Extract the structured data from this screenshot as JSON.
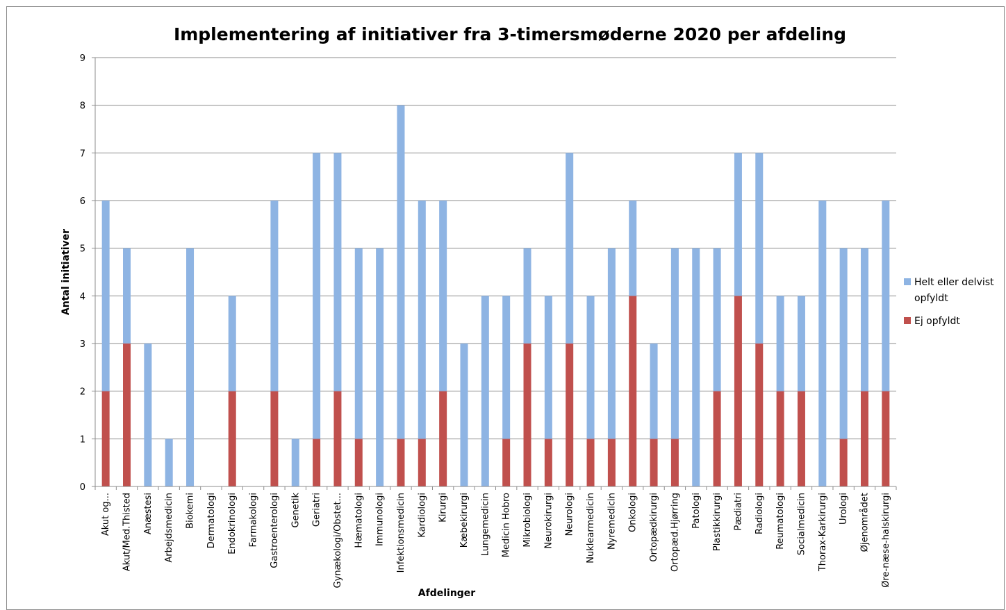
{
  "chart_data": {
    "type": "bar",
    "stacked": true,
    "title": "Implementering af initiativer fra 3-timersmøderne 2020 per afdeling",
    "xlabel": "Afdelinger",
    "ylabel": "Antal initiativer",
    "ylim": [
      0,
      9
    ],
    "yticks": [
      "0",
      "1",
      "2",
      "3",
      "4",
      "5",
      "6",
      "7",
      "8",
      "9"
    ],
    "grid": true,
    "legend_position": "right",
    "categories": [
      "Akut og...",
      "Akut/Med.Thisted",
      "Anæstesi",
      "Arbejdsmedicin",
      "Biokemi",
      "Dermatologi",
      "Endokrinologi",
      "Farmakologi",
      "Gastroenterologi",
      "Genetik",
      "Geriatri",
      "Gynækologi/Obstet...",
      "Hæmatologi",
      "Immunologi",
      "Infektionsmedicin",
      "Kardiologi",
      "Kirurgi",
      "Kæbekirurgi",
      "Lungemedicin",
      "Medicin Hobro",
      "Mikrobiologi",
      "Neurokirurgi",
      "Neurologi",
      "Nuklearmedicin",
      "Nyremedicin",
      "Onkologi",
      "Ortopædkirurgi",
      "Ortopæd.Hjørring",
      "Patologi",
      "Plastikkirurgi",
      "Pædiatri",
      "Radiologi",
      "Reumatologi",
      "Socialmedicin",
      "Thorax-Karkirurgi",
      "Urologi",
      "Øjenområdet",
      "Øre-næse-halskirurgi"
    ],
    "series": [
      {
        "name": "Ej opfyldt",
        "color": "#c0504d",
        "values": [
          2,
          3,
          0,
          0,
          0,
          0,
          2,
          0,
          2,
          0,
          1,
          2,
          1,
          0,
          1,
          1,
          2,
          0,
          0,
          1,
          3,
          1,
          3,
          1,
          1,
          4,
          1,
          1,
          0,
          2,
          4,
          3,
          2,
          2,
          0,
          1,
          2,
          2
        ]
      },
      {
        "name": "Helt eller delvist opfyldt",
        "color": "#8eb4e3",
        "values": [
          4,
          2,
          3,
          1,
          5,
          0,
          2,
          0,
          4,
          1,
          6,
          5,
          4,
          5,
          7,
          5,
          4,
          3,
          4,
          3,
          2,
          3,
          4,
          3,
          4,
          2,
          2,
          4,
          5,
          3,
          3,
          4,
          2,
          2,
          6,
          4,
          3,
          4
        ]
      }
    ],
    "legend": [
      {
        "lines": [
          "Helt eller delvist",
          "opfyldt"
        ],
        "color": "#8eb4e3"
      },
      {
        "lines": [
          "Ej opfyldt"
        ],
        "color": "#c0504d"
      }
    ]
  }
}
